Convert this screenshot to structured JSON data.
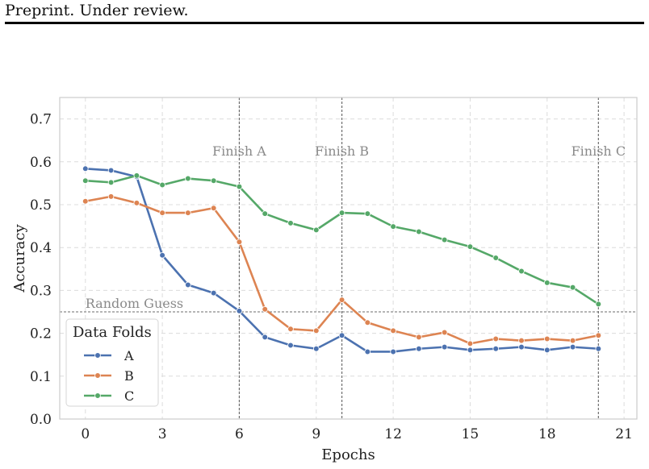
{
  "header": {
    "text": "Preprint. Under review."
  },
  "chart_data": {
    "type": "line",
    "xlabel": "Epochs",
    "ylabel": "Accuracy",
    "xlim": [
      -1,
      21.5
    ],
    "ylim": [
      0.0,
      0.75
    ],
    "xticks": [
      0,
      3,
      6,
      9,
      12,
      15,
      18,
      21
    ],
    "yticks": [
      0.0,
      0.1,
      0.2,
      0.3,
      0.4,
      0.5,
      0.6,
      0.7
    ],
    "grid": true,
    "legend": {
      "title": "Data Folds",
      "placement": "lower-left"
    },
    "x": [
      0,
      1,
      2,
      3,
      4,
      5,
      6,
      7,
      8,
      9,
      10,
      11,
      12,
      13,
      14,
      15,
      16,
      17,
      18,
      19,
      20
    ],
    "series": [
      {
        "name": "A",
        "color": "#4c72b0",
        "values": [
          0.584,
          0.58,
          0.565,
          0.382,
          0.313,
          0.294,
          0.252,
          0.191,
          0.172,
          0.164,
          0.195,
          0.157,
          0.157,
          0.164,
          0.168,
          0.161,
          0.164,
          0.168,
          0.161,
          0.168,
          0.164
        ]
      },
      {
        "name": "B",
        "color": "#dd8452",
        "values": [
          0.508,
          0.519,
          0.504,
          0.481,
          0.481,
          0.492,
          0.413,
          0.256,
          0.21,
          0.206,
          0.278,
          0.225,
          0.206,
          0.191,
          0.202,
          0.176,
          0.187,
          0.183,
          0.187,
          0.183,
          0.195
        ]
      },
      {
        "name": "C",
        "color": "#55a868",
        "values": [
          0.556,
          0.552,
          0.568,
          0.546,
          0.561,
          0.556,
          0.542,
          0.479,
          0.457,
          0.441,
          0.481,
          0.479,
          0.449,
          0.437,
          0.418,
          0.402,
          0.376,
          0.345,
          0.318,
          0.307,
          0.268
        ]
      }
    ],
    "hline": {
      "y": 0.25,
      "label": "Random Guess"
    },
    "vlines": [
      {
        "x": 6,
        "label": "Finish A"
      },
      {
        "x": 10,
        "label": "Finish B"
      },
      {
        "x": 20,
        "label": "Finish C"
      }
    ]
  }
}
